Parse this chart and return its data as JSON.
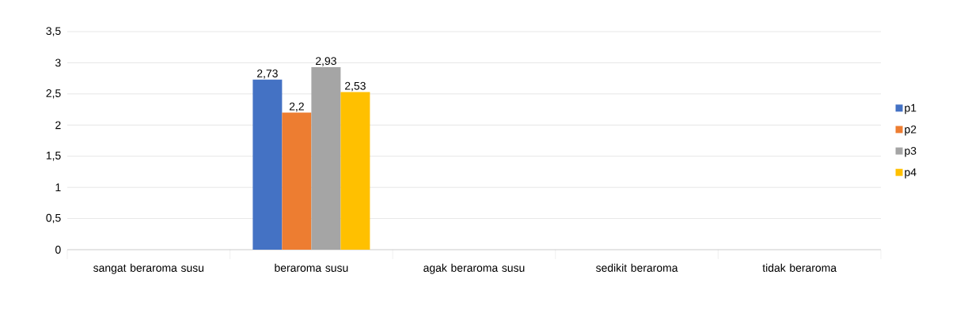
{
  "chart_data": {
    "type": "bar",
    "categories": [
      "sangat beraroma susu",
      "beraroma susu",
      "agak beraroma susu",
      "sedikit beraroma",
      "tidak beraroma"
    ],
    "series": [
      {
        "name": "p1",
        "color": "#4472c4",
        "values": [
          null,
          2.73,
          null,
          null,
          null
        ],
        "value_labels": [
          null,
          "2,73",
          null,
          null,
          null
        ]
      },
      {
        "name": "p2",
        "color": "#ed7d31",
        "values": [
          null,
          2.2,
          null,
          null,
          null
        ],
        "value_labels": [
          null,
          "2,2",
          null,
          null,
          null
        ]
      },
      {
        "name": "p3",
        "color": "#a5a5a5",
        "values": [
          null,
          2.93,
          null,
          null,
          null
        ],
        "value_labels": [
          null,
          "2,93",
          null,
          null,
          null
        ]
      },
      {
        "name": "p4",
        "color": "#ffc000",
        "values": [
          null,
          2.53,
          null,
          null,
          null
        ],
        "value_labels": [
          null,
          "2,53",
          null,
          null,
          null
        ]
      }
    ],
    "ylim": [
      0,
      3.5
    ],
    "yticks": [
      0,
      {
        "value": 0.5,
        "label": "0,5"
      },
      1,
      {
        "value": 1.5,
        "label": "1,5"
      },
      2,
      {
        "value": 2.5,
        "label": "2,5"
      },
      3,
      {
        "value": 3.5,
        "label": "3,5"
      }
    ],
    "grid": "y",
    "legend": "right"
  }
}
